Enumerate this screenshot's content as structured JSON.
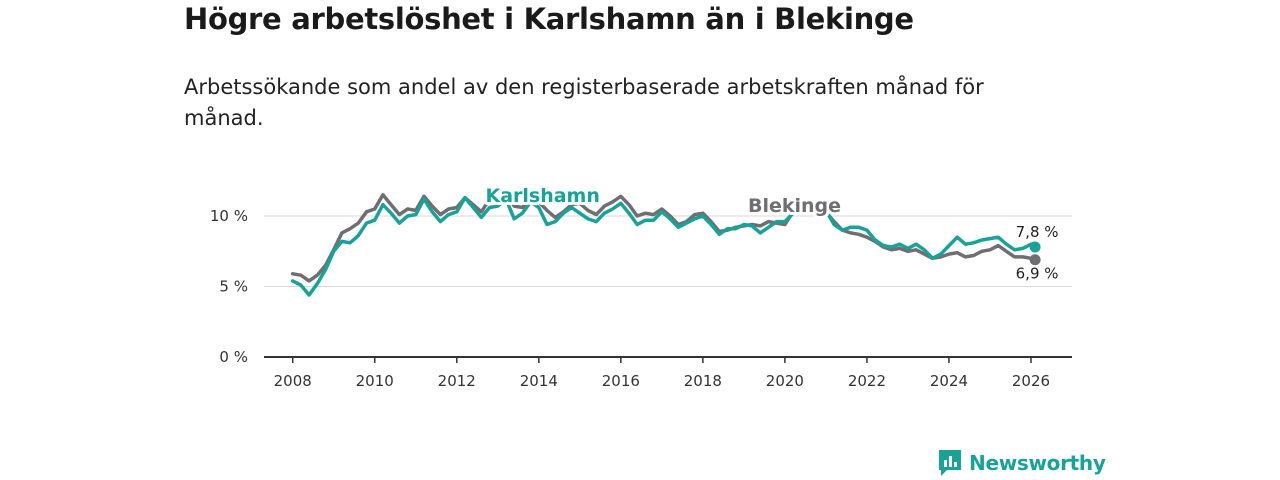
{
  "title": "Högre arbetslöshet i Karlshamn än i Blekinge",
  "subtitle": "Arbetssökande som andel av den registerbaserade arbetskraften månad för månad.",
  "brand": {
    "name": "Newsworthy",
    "color": "#17a398"
  },
  "chart_data": {
    "type": "line",
    "title": "Högre arbetslöshet i Karlshamn än i Blekinge",
    "subtitle": "Arbetssökande som andel av den registerbaserade arbetskraften månad för månad.",
    "xlabel": "",
    "ylabel": "",
    "xlim": [
      2007.3,
      2027.0
    ],
    "ylim": [
      0,
      12
    ],
    "x_ticks": [
      {
        "value": 2008,
        "label": "2008"
      },
      {
        "value": 2010,
        "label": "2010"
      },
      {
        "value": 2012,
        "label": "2012"
      },
      {
        "value": 2014,
        "label": "2014"
      },
      {
        "value": 2016,
        "label": "2016"
      },
      {
        "value": 2018,
        "label": "2018"
      },
      {
        "value": 2020,
        "label": "2020"
      },
      {
        "value": 2022,
        "label": "2022"
      },
      {
        "value": 2024,
        "label": "2024"
      },
      {
        "value": 2026,
        "label": "2026"
      }
    ],
    "y_ticks": [
      {
        "value": 0,
        "label": "0 %"
      },
      {
        "value": 5,
        "label": "5 %"
      },
      {
        "value": 10,
        "label": "10 %"
      }
    ],
    "grid": "horizontal",
    "series": [
      {
        "name": "Blekinge",
        "color": "#6e6e73",
        "end_label": "6,9 %",
        "points": [
          [
            2008.0,
            5.9
          ],
          [
            2008.2,
            5.8
          ],
          [
            2008.4,
            5.4
          ],
          [
            2008.6,
            5.8
          ],
          [
            2008.8,
            6.5
          ],
          [
            2009.0,
            7.6
          ],
          [
            2009.2,
            8.8
          ],
          [
            2009.4,
            9.1
          ],
          [
            2009.6,
            9.5
          ],
          [
            2009.8,
            10.3
          ],
          [
            2010.0,
            10.5
          ],
          [
            2010.2,
            11.5
          ],
          [
            2010.4,
            10.8
          ],
          [
            2010.6,
            10.1
          ],
          [
            2010.8,
            10.5
          ],
          [
            2011.0,
            10.4
          ],
          [
            2011.2,
            11.4
          ],
          [
            2011.4,
            10.7
          ],
          [
            2011.6,
            10.1
          ],
          [
            2011.8,
            10.5
          ],
          [
            2012.0,
            10.6
          ],
          [
            2012.2,
            11.3
          ],
          [
            2012.4,
            10.8
          ],
          [
            2012.6,
            10.3
          ],
          [
            2012.8,
            11.2
          ],
          [
            2013.0,
            11.9
          ],
          [
            2013.2,
            11.6
          ],
          [
            2013.4,
            10.7
          ],
          [
            2013.6,
            10.6
          ],
          [
            2013.8,
            11.3
          ],
          [
            2014.0,
            11.0
          ],
          [
            2014.2,
            10.4
          ],
          [
            2014.4,
            9.9
          ],
          [
            2014.6,
            10.3
          ],
          [
            2014.8,
            10.8
          ],
          [
            2015.0,
            10.9
          ],
          [
            2015.2,
            10.4
          ],
          [
            2015.4,
            10.1
          ],
          [
            2015.6,
            10.7
          ],
          [
            2015.8,
            11.0
          ],
          [
            2016.0,
            11.4
          ],
          [
            2016.2,
            10.8
          ],
          [
            2016.4,
            10.0
          ],
          [
            2016.6,
            10.2
          ],
          [
            2016.8,
            10.1
          ],
          [
            2017.0,
            10.5
          ],
          [
            2017.2,
            10.0
          ],
          [
            2017.4,
            9.4
          ],
          [
            2017.6,
            9.6
          ],
          [
            2017.8,
            10.1
          ],
          [
            2018.0,
            10.2
          ],
          [
            2018.2,
            9.6
          ],
          [
            2018.4,
            8.9
          ],
          [
            2018.6,
            9.0
          ],
          [
            2018.8,
            9.2
          ],
          [
            2019.0,
            9.3
          ],
          [
            2019.2,
            9.4
          ],
          [
            2019.4,
            9.3
          ],
          [
            2019.6,
            9.6
          ],
          [
            2019.8,
            9.5
          ],
          [
            2020.0,
            9.4
          ],
          [
            2020.2,
            10.3
          ],
          [
            2020.4,
            10.6
          ],
          [
            2020.6,
            10.5
          ],
          [
            2020.8,
            10.9
          ],
          [
            2021.0,
            10.3
          ],
          [
            2021.2,
            9.6
          ],
          [
            2021.4,
            9.0
          ],
          [
            2021.6,
            8.8
          ],
          [
            2021.8,
            8.7
          ],
          [
            2022.0,
            8.5
          ],
          [
            2022.2,
            8.2
          ],
          [
            2022.4,
            7.8
          ],
          [
            2022.6,
            7.6
          ],
          [
            2022.8,
            7.7
          ],
          [
            2023.0,
            7.5
          ],
          [
            2023.2,
            7.6
          ],
          [
            2023.4,
            7.3
          ],
          [
            2023.6,
            7.0
          ],
          [
            2023.8,
            7.1
          ],
          [
            2024.0,
            7.3
          ],
          [
            2024.2,
            7.4
          ],
          [
            2024.4,
            7.1
          ],
          [
            2024.6,
            7.2
          ],
          [
            2024.8,
            7.5
          ],
          [
            2025.0,
            7.6
          ],
          [
            2025.2,
            7.9
          ],
          [
            2025.4,
            7.5
          ],
          [
            2025.6,
            7.1
          ],
          [
            2025.8,
            7.1
          ],
          [
            2026.0,
            7.0
          ],
          [
            2026.1,
            6.9
          ]
        ]
      },
      {
        "name": "Karlshamn",
        "color": "#17a398",
        "end_label": "7,8 %",
        "points": [
          [
            2008.0,
            5.4
          ],
          [
            2008.2,
            5.1
          ],
          [
            2008.4,
            4.4
          ],
          [
            2008.6,
            5.2
          ],
          [
            2008.8,
            6.2
          ],
          [
            2009.0,
            7.5
          ],
          [
            2009.2,
            8.2
          ],
          [
            2009.4,
            8.1
          ],
          [
            2009.6,
            8.6
          ],
          [
            2009.8,
            9.5
          ],
          [
            2010.0,
            9.7
          ],
          [
            2010.2,
            10.8
          ],
          [
            2010.4,
            10.2
          ],
          [
            2010.6,
            9.5
          ],
          [
            2010.8,
            10.0
          ],
          [
            2011.0,
            10.1
          ],
          [
            2011.2,
            11.2
          ],
          [
            2011.4,
            10.3
          ],
          [
            2011.6,
            9.6
          ],
          [
            2011.8,
            10.1
          ],
          [
            2012.0,
            10.3
          ],
          [
            2012.2,
            11.3
          ],
          [
            2012.4,
            10.6
          ],
          [
            2012.6,
            9.9
          ],
          [
            2012.8,
            10.6
          ],
          [
            2013.0,
            10.7
          ],
          [
            2013.2,
            11.2
          ],
          [
            2013.4,
            9.8
          ],
          [
            2013.6,
            10.2
          ],
          [
            2013.8,
            11.0
          ],
          [
            2014.0,
            10.6
          ],
          [
            2014.2,
            9.4
          ],
          [
            2014.4,
            9.6
          ],
          [
            2014.6,
            10.2
          ],
          [
            2014.8,
            10.6
          ],
          [
            2015.0,
            10.2
          ],
          [
            2015.2,
            9.8
          ],
          [
            2015.4,
            9.6
          ],
          [
            2015.6,
            10.2
          ],
          [
            2015.8,
            10.5
          ],
          [
            2016.0,
            10.9
          ],
          [
            2016.2,
            10.2
          ],
          [
            2016.4,
            9.4
          ],
          [
            2016.6,
            9.7
          ],
          [
            2016.8,
            9.7
          ],
          [
            2017.0,
            10.3
          ],
          [
            2017.2,
            9.8
          ],
          [
            2017.4,
            9.2
          ],
          [
            2017.6,
            9.5
          ],
          [
            2017.8,
            9.8
          ],
          [
            2018.0,
            10.0
          ],
          [
            2018.2,
            9.4
          ],
          [
            2018.4,
            8.7
          ],
          [
            2018.6,
            9.1
          ],
          [
            2018.8,
            9.1
          ],
          [
            2019.0,
            9.4
          ],
          [
            2019.2,
            9.3
          ],
          [
            2019.4,
            8.8
          ],
          [
            2019.6,
            9.2
          ],
          [
            2019.8,
            9.6
          ],
          [
            2020.0,
            9.6
          ],
          [
            2020.2,
            10.2
          ],
          [
            2020.4,
            10.5
          ],
          [
            2020.6,
            10.4
          ],
          [
            2020.8,
            10.9
          ],
          [
            2021.0,
            10.4
          ],
          [
            2021.2,
            9.4
          ],
          [
            2021.4,
            9.0
          ],
          [
            2021.6,
            9.2
          ],
          [
            2021.8,
            9.2
          ],
          [
            2022.0,
            9.0
          ],
          [
            2022.2,
            8.3
          ],
          [
            2022.4,
            7.9
          ],
          [
            2022.6,
            7.8
          ],
          [
            2022.8,
            8.0
          ],
          [
            2023.0,
            7.7
          ],
          [
            2023.2,
            8.0
          ],
          [
            2023.4,
            7.6
          ],
          [
            2023.6,
            7.0
          ],
          [
            2023.8,
            7.3
          ],
          [
            2024.0,
            7.9
          ],
          [
            2024.2,
            8.5
          ],
          [
            2024.4,
            8.0
          ],
          [
            2024.6,
            8.1
          ],
          [
            2024.8,
            8.3
          ],
          [
            2025.0,
            8.4
          ],
          [
            2025.2,
            8.5
          ],
          [
            2025.4,
            8.0
          ],
          [
            2025.6,
            7.6
          ],
          [
            2025.8,
            7.7
          ],
          [
            2026.0,
            8.0
          ],
          [
            2026.1,
            7.8
          ]
        ]
      }
    ],
    "annotations": [
      {
        "text": "Karlshamn",
        "series": "Karlshamn",
        "x": 2012.7,
        "y": 11.0,
        "anchor": "start"
      },
      {
        "text": "Blekinge",
        "series": "Blekinge",
        "x": 2019.1,
        "y": 10.3,
        "anchor": "start"
      }
    ]
  }
}
